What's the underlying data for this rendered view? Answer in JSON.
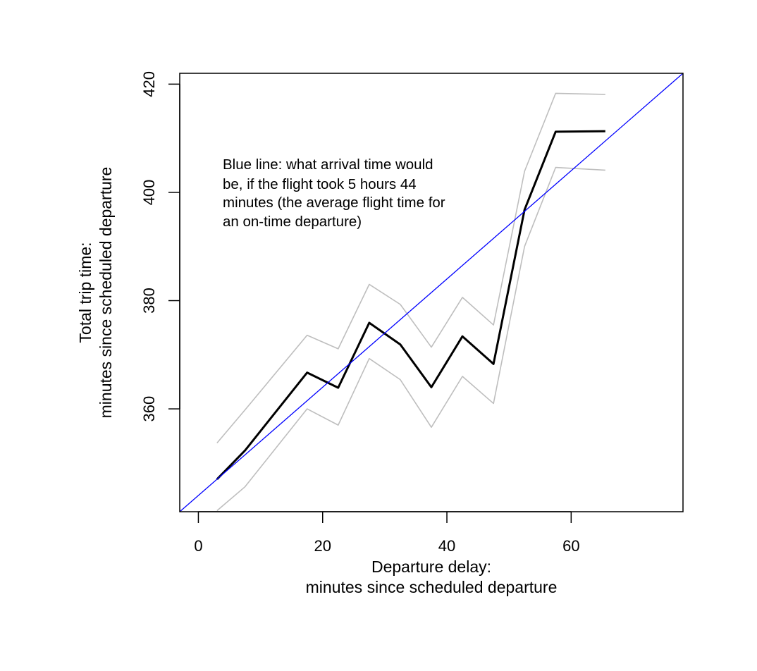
{
  "chart_data": {
    "type": "line",
    "title": "",
    "xlabel": [
      "Departure delay:",
      "minutes since scheduled departure"
    ],
    "ylabel": [
      "Total trip time:",
      "minutes since scheduled departure"
    ],
    "xlim": [
      -3,
      78
    ],
    "ylim": [
      341,
      422
    ],
    "x_ticks": [
      0,
      20,
      40,
      60
    ],
    "y_ticks": [
      360,
      380,
      400,
      420
    ],
    "grid": false,
    "x": [
      3,
      7.5,
      17.5,
      22.5,
      27.5,
      32.5,
      37.5,
      42.5,
      47.5,
      52.5,
      57.5,
      65.5
    ],
    "series": [
      {
        "role": "mean",
        "color": "#000000",
        "values": [
          347.0,
          352.3,
          366.7,
          363.9,
          375.9,
          371.9,
          364.0,
          373.4,
          368.3,
          396.8,
          411.2,
          411.3
        ]
      },
      {
        "role": "upper-band",
        "color": "#bebebe",
        "values": [
          353.7,
          359.8,
          373.6,
          371.1,
          383.0,
          379.3,
          371.4,
          380.6,
          375.5,
          403.9,
          418.3,
          418.1
        ]
      },
      {
        "role": "lower-band",
        "color": "#bebebe",
        "values": [
          341.2,
          345.6,
          360.0,
          357.0,
          369.3,
          365.4,
          356.6,
          366.0,
          361.0,
          390.0,
          404.6,
          404.1
        ]
      }
    ],
    "reference_line": {
      "color": "#0000ff",
      "intercept": 344,
      "slope": 1,
      "annotation": [
        "Blue line:  what arrival time would",
        "be, if the flight took 5 hours 44",
        "minutes (the average flight time for",
        "an on-time departure)"
      ],
      "annotation_x": 4,
      "annotation_y": 405
    }
  }
}
